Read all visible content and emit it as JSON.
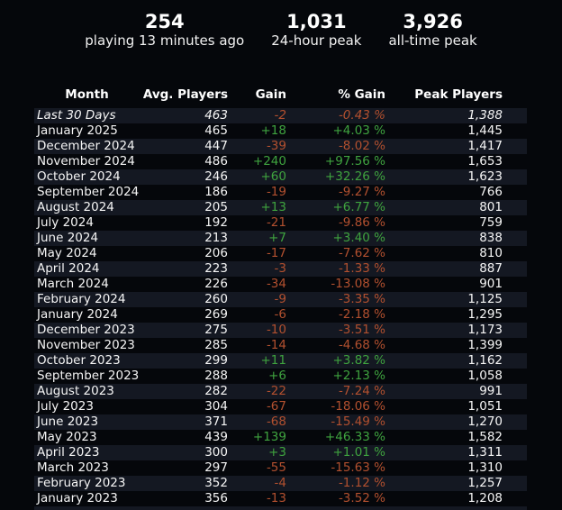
{
  "stats": [
    {
      "value": "254",
      "label": "playing 13 minutes ago"
    },
    {
      "value": "1,031",
      "label": "24-hour peak"
    },
    {
      "value": "3,926",
      "label": "all-time peak"
    }
  ],
  "table": {
    "columns": [
      "Month",
      "Avg. Players",
      "Gain",
      "% Gain",
      "Peak Players"
    ],
    "rows": [
      {
        "month": "Last 30 Days",
        "avg": "463",
        "gain": "-2",
        "pct": "-0.43 %",
        "peak": "1,388",
        "italic": true
      },
      {
        "month": "January 2025",
        "avg": "465",
        "gain": "+18",
        "pct": "+4.03 %",
        "peak": "1,445"
      },
      {
        "month": "December 2024",
        "avg": "447",
        "gain": "-39",
        "pct": "-8.02 %",
        "peak": "1,417"
      },
      {
        "month": "November 2024",
        "avg": "486",
        "gain": "+240",
        "pct": "+97.56 %",
        "peak": "1,653"
      },
      {
        "month": "October 2024",
        "avg": "246",
        "gain": "+60",
        "pct": "+32.26 %",
        "peak": "1,623"
      },
      {
        "month": "September 2024",
        "avg": "186",
        "gain": "-19",
        "pct": "-9.27 %",
        "peak": "766"
      },
      {
        "month": "August 2024",
        "avg": "205",
        "gain": "+13",
        "pct": "+6.77 %",
        "peak": "801"
      },
      {
        "month": "July 2024",
        "avg": "192",
        "gain": "-21",
        "pct": "-9.86 %",
        "peak": "759"
      },
      {
        "month": "June 2024",
        "avg": "213",
        "gain": "+7",
        "pct": "+3.40 %",
        "peak": "838"
      },
      {
        "month": "May 2024",
        "avg": "206",
        "gain": "-17",
        "pct": "-7.62 %",
        "peak": "810"
      },
      {
        "month": "April 2024",
        "avg": "223",
        "gain": "-3",
        "pct": "-1.33 %",
        "peak": "887"
      },
      {
        "month": "March 2024",
        "avg": "226",
        "gain": "-34",
        "pct": "-13.08 %",
        "peak": "901"
      },
      {
        "month": "February 2024",
        "avg": "260",
        "gain": "-9",
        "pct": "-3.35 %",
        "peak": "1,125"
      },
      {
        "month": "January 2024",
        "avg": "269",
        "gain": "-6",
        "pct": "-2.18 %",
        "peak": "1,295"
      },
      {
        "month": "December 2023",
        "avg": "275",
        "gain": "-10",
        "pct": "-3.51 %",
        "peak": "1,173"
      },
      {
        "month": "November 2023",
        "avg": "285",
        "gain": "-14",
        "pct": "-4.68 %",
        "peak": "1,399"
      },
      {
        "month": "October 2023",
        "avg": "299",
        "gain": "+11",
        "pct": "+3.82 %",
        "peak": "1,162"
      },
      {
        "month": "September 2023",
        "avg": "288",
        "gain": "+6",
        "pct": "+2.13 %",
        "peak": "1,058"
      },
      {
        "month": "August 2023",
        "avg": "282",
        "gain": "-22",
        "pct": "-7.24 %",
        "peak": "991"
      },
      {
        "month": "July 2023",
        "avg": "304",
        "gain": "-67",
        "pct": "-18.06 %",
        "peak": "1,051"
      },
      {
        "month": "June 2023",
        "avg": "371",
        "gain": "-68",
        "pct": "-15.49 %",
        "peak": "1,270"
      },
      {
        "month": "May 2023",
        "avg": "439",
        "gain": "+139",
        "pct": "+46.33 %",
        "peak": "1,582"
      },
      {
        "month": "April 2023",
        "avg": "300",
        "gain": "+3",
        "pct": "+1.01 %",
        "peak": "1,311"
      },
      {
        "month": "March 2023",
        "avg": "297",
        "gain": "-55",
        "pct": "-15.63 %",
        "peak": "1,310"
      },
      {
        "month": "February 2023",
        "avg": "352",
        "gain": "-4",
        "pct": "-1.12 %",
        "peak": "1,257"
      },
      {
        "month": "January 2023",
        "avg": "356",
        "gain": "-13",
        "pct": "-3.52 %",
        "peak": "1,208"
      }
    ]
  },
  "colors": {
    "background": "#05070b",
    "row_stripe": "#141822",
    "text": "#ffffff",
    "positive": "#3fa33f",
    "negative": "#b2502f"
  }
}
